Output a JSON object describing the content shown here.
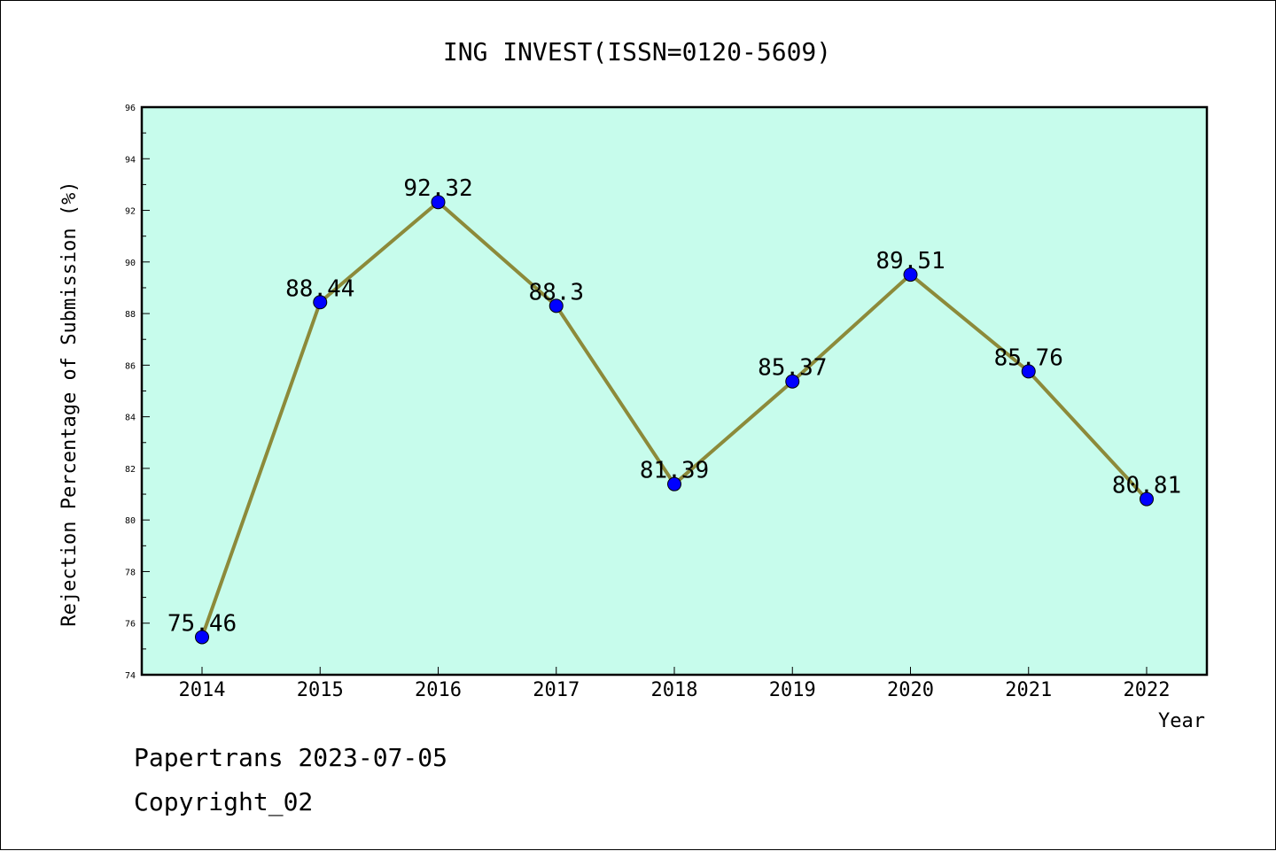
{
  "chart_data": {
    "type": "line",
    "title": "ING INVEST(ISSN=0120-5609)",
    "xlabel": "Year",
    "ylabel": "Rejection Percentage of Submission (%)",
    "x": [
      "2014",
      "2015",
      "2016",
      "2017",
      "2018",
      "2019",
      "2020",
      "2021",
      "2022"
    ],
    "series": [
      {
        "values": [
          75.46,
          88.44,
          92.32,
          88.3,
          81.39,
          85.37,
          89.51,
          85.76,
          80.81
        ],
        "labels": [
          "75.46",
          "88.44",
          "92.32",
          "88.3",
          "81.39",
          "85.37",
          "89.51",
          "85.76",
          "80.81"
        ]
      }
    ],
    "ylim": [
      74,
      96
    ],
    "yticks": [
      "74",
      "76",
      "78",
      "80",
      "82",
      "84",
      "86",
      "88",
      "90",
      "92",
      "94",
      "96"
    ],
    "grid": false,
    "plot_background": "#c7fcec",
    "line_color": "#8c8a3a",
    "marker_color": "#0000ff"
  },
  "footer": {
    "line1": "Papertrans 2023-07-05",
    "line2": "Copyright_02"
  }
}
